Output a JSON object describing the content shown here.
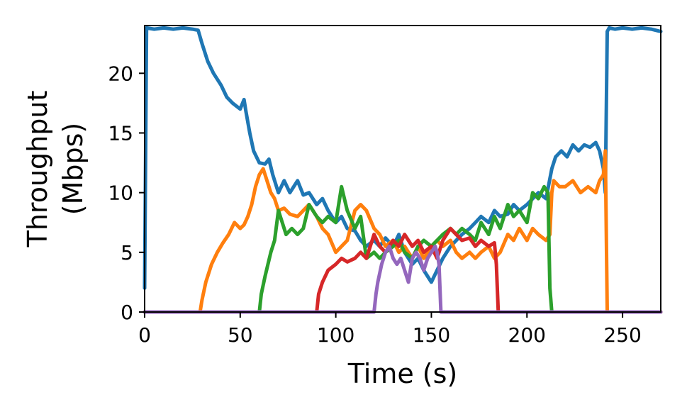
{
  "chart_data": {
    "type": "line",
    "xlabel": "Time (s)",
    "ylabel_line1": "Throughput",
    "ylabel_line2": "(Mbps)",
    "xlim": [
      0,
      270
    ],
    "ylim": [
      0,
      24
    ],
    "xticks": [
      0,
      50,
      100,
      150,
      200,
      250
    ],
    "yticks": [
      0,
      5,
      10,
      15,
      20
    ],
    "grid": false,
    "legend": "none",
    "series": [
      {
        "color": "#1f77b4",
        "x": [
          0,
          1,
          5,
          10,
          15,
          20,
          25,
          28,
          30,
          33,
          36,
          40,
          43,
          46,
          50,
          52,
          53,
          55,
          57,
          60,
          63,
          65,
          67,
          70,
          73,
          76,
          80,
          83,
          86,
          90,
          93,
          96,
          100,
          103,
          106,
          110,
          113,
          116,
          120,
          123,
          126,
          130,
          133,
          136,
          140,
          143,
          146,
          150,
          153,
          156,
          160,
          163,
          166,
          170,
          173,
          176,
          180,
          183,
          186,
          190,
          193,
          196,
          200,
          203,
          206,
          210,
          213,
          215,
          218,
          221,
          224,
          227,
          230,
          233,
          236,
          238,
          240,
          241,
          242,
          243,
          246,
          250,
          255,
          260,
          265,
          270
        ],
        "y": [
          2,
          23.8,
          23.7,
          23.8,
          23.7,
          23.8,
          23.7,
          23.6,
          22.5,
          21,
          20,
          19,
          18,
          17.5,
          17,
          17.8,
          16.8,
          15,
          13.5,
          12.5,
          12.4,
          12.8,
          11.5,
          10,
          11,
          10,
          11,
          9.8,
          10,
          9,
          9.5,
          8.5,
          7.5,
          8,
          7,
          6.8,
          6,
          5.5,
          6,
          5.5,
          6.2,
          5.5,
          6.5,
          5,
          4,
          4.5,
          3.5,
          2.5,
          3.5,
          4.5,
          5.5,
          6,
          6.5,
          7,
          7.5,
          8,
          7.5,
          8.5,
          8,
          8.2,
          9,
          8.5,
          9,
          9.5,
          10,
          9.5,
          12,
          13,
          13.5,
          13,
          14,
          13.5,
          14,
          13.8,
          14.2,
          13.5,
          12,
          10,
          23.5,
          23.8,
          23.7,
          23.8,
          23.7,
          23.8,
          23.7,
          23.5
        ]
      },
      {
        "color": "#ff7f0e",
        "x": [
          0,
          29,
          30,
          32,
          35,
          38,
          41,
          44,
          47,
          50,
          52,
          54,
          56,
          58,
          60,
          62,
          64,
          66,
          68,
          70,
          73,
          76,
          80,
          83,
          86,
          90,
          93,
          96,
          100,
          103,
          106,
          110,
          113,
          116,
          120,
          123,
          126,
          130,
          133,
          136,
          140,
          143,
          146,
          150,
          153,
          156,
          160,
          163,
          166,
          170,
          173,
          176,
          180,
          183,
          186,
          190,
          193,
          196,
          200,
          203,
          206,
          210,
          212,
          213,
          214,
          217,
          220,
          224,
          228,
          232,
          236,
          238,
          240,
          241,
          242,
          243,
          246,
          250,
          255,
          260,
          265,
          270
        ],
        "y": [
          0,
          0,
          1,
          2.5,
          4,
          5,
          5.8,
          6.5,
          7.5,
          7,
          7.3,
          8,
          9,
          10.5,
          11.5,
          12,
          11,
          10,
          9.5,
          8.5,
          8.7,
          8.2,
          8,
          8.5,
          9,
          8,
          7,
          6.5,
          5,
          5.5,
          6,
          8.5,
          9,
          8.5,
          7,
          6.5,
          5.5,
          6,
          5,
          5.5,
          4.5,
          5.5,
          4.5,
          5.5,
          6,
          5.5,
          6,
          5,
          4.5,
          5,
          4.5,
          5,
          5.5,
          4.5,
          5,
          6.5,
          6,
          7,
          6,
          7,
          6.5,
          6,
          6.5,
          10,
          11,
          10.5,
          10.5,
          11,
          10,
          10.5,
          10,
          11,
          11.5,
          13.5,
          0,
          0,
          0,
          0,
          0,
          0,
          0,
          0
        ]
      },
      {
        "color": "#2ca02c",
        "x": [
          0,
          60,
          61,
          63,
          66,
          68,
          70,
          72,
          74,
          77,
          80,
          83,
          86,
          90,
          93,
          96,
          100,
          103,
          106,
          110,
          113,
          116,
          120,
          123,
          126,
          130,
          133,
          136,
          140,
          143,
          146,
          150,
          153,
          156,
          160,
          163,
          166,
          170,
          173,
          176,
          180,
          183,
          186,
          190,
          193,
          196,
          200,
          203,
          206,
          209,
          211,
          212,
          213,
          216,
          220,
          230,
          240,
          250,
          260,
          270
        ],
        "y": [
          0,
          0,
          1.5,
          3,
          5,
          6,
          8.5,
          7.5,
          6.5,
          7,
          6.5,
          7,
          9,
          8,
          7.5,
          8,
          7.5,
          10.5,
          8.5,
          7,
          8,
          4.5,
          5,
          4.5,
          5,
          5.5,
          6,
          5,
          4.5,
          5.5,
          6,
          5.5,
          6,
          6.5,
          7,
          6.5,
          7,
          6.5,
          6,
          7.5,
          6.5,
          8,
          7,
          9,
          8,
          8.5,
          7.5,
          10,
          9.5,
          10.5,
          10,
          2,
          0,
          0,
          0,
          0,
          0,
          0,
          0,
          0
        ]
      },
      {
        "color": "#d62728",
        "x": [
          0,
          90,
          91,
          93,
          96,
          100,
          103,
          106,
          110,
          113,
          116,
          120,
          123,
          126,
          130,
          133,
          136,
          140,
          143,
          146,
          150,
          153,
          156,
          160,
          163,
          166,
          170,
          173,
          176,
          180,
          183,
          184,
          185,
          190,
          200,
          210,
          220,
          230,
          240,
          250,
          260,
          270
        ],
        "y": [
          0,
          0,
          1.5,
          2.5,
          3.5,
          4,
          4.5,
          4.2,
          4.5,
          5,
          4.5,
          6.5,
          5.5,
          5,
          6,
          5.5,
          6.5,
          5.5,
          6,
          5,
          5.5,
          4.5,
          6,
          7,
          6.5,
          6,
          6.2,
          5.5,
          6,
          5.5,
          5.8,
          4,
          0,
          0,
          0,
          0,
          0,
          0,
          0,
          0,
          0,
          0
        ]
      },
      {
        "color": "#9467bd",
        "x": [
          0,
          120,
          121,
          122,
          124,
          126,
          128,
          130,
          132,
          134,
          136,
          138,
          140,
          142,
          144,
          146,
          148,
          150,
          152,
          153,
          154,
          155,
          160,
          170,
          180,
          200,
          220,
          240,
          260,
          270
        ],
        "y": [
          0,
          0,
          1.5,
          2.5,
          4,
          5,
          5.5,
          4.5,
          4,
          4.5,
          3.5,
          2.5,
          4.5,
          5,
          4.5,
          3.5,
          4.5,
          5,
          5.5,
          5,
          4,
          0,
          0,
          0,
          0,
          0,
          0,
          0,
          0,
          0
        ]
      }
    ]
  }
}
